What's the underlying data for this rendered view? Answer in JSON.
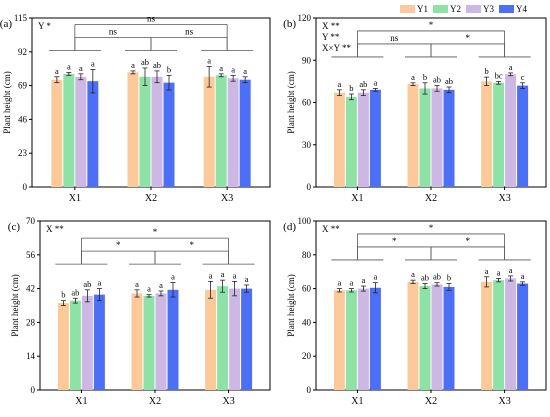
{
  "legend": {
    "placement": "top-right",
    "items": [
      {
        "label": "Y1",
        "color": "#fcc99a"
      },
      {
        "label": "Y2",
        "color": "#8fe2a5"
      },
      {
        "label": "Y3",
        "color": "#cdb7e4"
      },
      {
        "label": "Y4",
        "color": "#4c6ff5"
      }
    ]
  },
  "chart_data": [
    {
      "type": "bar",
      "panel_label": "(a)",
      "ylabel": "Plant height (cm)",
      "ylim": [
        0,
        115
      ],
      "yticks": [
        "0",
        "23",
        "46",
        "69",
        "92",
        "115"
      ],
      "categories": [
        "X1",
        "X2",
        "X3"
      ],
      "significance_text": [
        "Y *"
      ],
      "series": [
        {
          "name": "Y1",
          "values": [
            73,
            78,
            75
          ],
          "errors": [
            2,
            1,
            7
          ],
          "letters": [
            "a",
            "a",
            "a"
          ]
        },
        {
          "name": "Y2",
          "values": [
            77,
            75,
            76
          ],
          "errors": [
            1,
            6,
            1
          ],
          "letters": [
            "a",
            "ab",
            "a"
          ]
        },
        {
          "name": "Y3",
          "values": [
            75,
            75,
            74
          ],
          "errors": [
            2,
            4,
            2
          ],
          "letters": [
            "a",
            "ab",
            "a"
          ]
        },
        {
          "name": "Y4",
          "values": [
            72,
            71,
            73
          ],
          "errors": [
            8,
            5,
            2
          ],
          "letters": [
            "a",
            "b",
            "a"
          ]
        }
      ],
      "group_brackets": [
        {
          "from": 0,
          "to": 2,
          "label": "ns",
          "level": 2
        },
        {
          "from": 0,
          "to": 1,
          "label": "ns",
          "level": 1
        },
        {
          "from": 1,
          "to": 2,
          "label": "ns",
          "level": 1
        }
      ]
    },
    {
      "type": "bar",
      "panel_label": "(b)",
      "ylabel": "Plant height (cm)",
      "ylim": [
        0,
        120
      ],
      "yticks": [
        "0",
        "30",
        "60",
        "90",
        "120"
      ],
      "categories": [
        "X1",
        "X2",
        "X3"
      ],
      "significance_text": [
        "X **",
        "Y **",
        "X×Y **"
      ],
      "series": [
        {
          "name": "Y1",
          "values": [
            67,
            73,
            75
          ],
          "errors": [
            2,
            1,
            3
          ],
          "letters": [
            "a",
            "a",
            "b"
          ]
        },
        {
          "name": "Y2",
          "values": [
            64,
            70,
            74
          ],
          "errors": [
            2,
            4,
            1
          ],
          "letters": [
            "b",
            "b",
            "bc"
          ]
        },
        {
          "name": "Y3",
          "values": [
            67,
            70,
            80
          ],
          "errors": [
            2,
            2,
            1
          ],
          "letters": [
            "ab",
            "ab",
            "a"
          ]
        },
        {
          "name": "Y4",
          "values": [
            69,
            69,
            72
          ],
          "errors": [
            1,
            2,
            2
          ],
          "letters": [
            "a",
            "ab",
            "c"
          ]
        }
      ],
      "group_brackets": [
        {
          "from": 0,
          "to": 2,
          "label": "*",
          "level": 2
        },
        {
          "from": 0,
          "to": 1,
          "label": "ns",
          "level": 1
        },
        {
          "from": 1,
          "to": 2,
          "label": "*",
          "level": 1
        }
      ]
    },
    {
      "type": "bar",
      "panel_label": "(c)",
      "ylabel": "Plant height (cm)",
      "ylim": [
        0,
        70
      ],
      "yticks": [
        "0",
        "14",
        "28",
        "42",
        "56",
        "70"
      ],
      "categories": [
        "X1",
        "X2",
        "X3"
      ],
      "significance_text": [
        "X **"
      ],
      "series": [
        {
          "name": "Y1",
          "values": [
            36,
            40,
            41.5
          ],
          "errors": [
            1,
            1.5,
            3.5
          ],
          "letters": [
            "b",
            "a",
            "a"
          ]
        },
        {
          "name": "Y2",
          "values": [
            37,
            39,
            43
          ],
          "errors": [
            1,
            0.5,
            2.5
          ],
          "letters": [
            "ab",
            "a",
            "a"
          ]
        },
        {
          "name": "Y3",
          "values": [
            39,
            40,
            42
          ],
          "errors": [
            2.5,
            1,
            3
          ],
          "letters": [
            "ab",
            "a",
            "a"
          ]
        },
        {
          "name": "Y4",
          "values": [
            39.5,
            41.5,
            42
          ],
          "errors": [
            2.5,
            3,
            1.5
          ],
          "letters": [
            "a",
            "a",
            "a"
          ]
        }
      ],
      "group_brackets": [
        {
          "from": 0,
          "to": 2,
          "label": "*",
          "level": 2
        },
        {
          "from": 0,
          "to": 1,
          "label": "*",
          "level": 1
        },
        {
          "from": 1,
          "to": 2,
          "label": "*",
          "level": 1
        }
      ]
    },
    {
      "type": "bar",
      "panel_label": "(d)",
      "ylabel": "Plant height (cm)",
      "ylim": [
        0,
        100
      ],
      "yticks": [
        "0",
        "20",
        "40",
        "60",
        "80",
        "100"
      ],
      "categories": [
        "X1",
        "X2",
        "X3"
      ],
      "significance_text": [
        "X **"
      ],
      "series": [
        {
          "name": "Y1",
          "values": [
            59,
            64,
            64
          ],
          "errors": [
            1,
            1,
            3
          ],
          "letters": [
            "a",
            "a",
            "a"
          ]
        },
        {
          "name": "Y2",
          "values": [
            59,
            61.5,
            65
          ],
          "errors": [
            1,
            1.5,
            1
          ],
          "letters": [
            "a",
            "ab",
            "a"
          ]
        },
        {
          "name": "Y3",
          "values": [
            60,
            62.5,
            66
          ],
          "errors": [
            1.5,
            1,
            1.5
          ],
          "letters": [
            "a",
            "ab",
            "a"
          ]
        },
        {
          "name": "Y4",
          "values": [
            60.5,
            61,
            63
          ],
          "errors": [
            3,
            2,
            1
          ],
          "letters": [
            "a",
            "b",
            "a"
          ]
        }
      ],
      "group_brackets": [
        {
          "from": 0,
          "to": 2,
          "label": "*",
          "level": 2
        },
        {
          "from": 0,
          "to": 1,
          "label": "*",
          "level": 1
        },
        {
          "from": 1,
          "to": 2,
          "label": "*",
          "level": 1
        }
      ]
    }
  ]
}
